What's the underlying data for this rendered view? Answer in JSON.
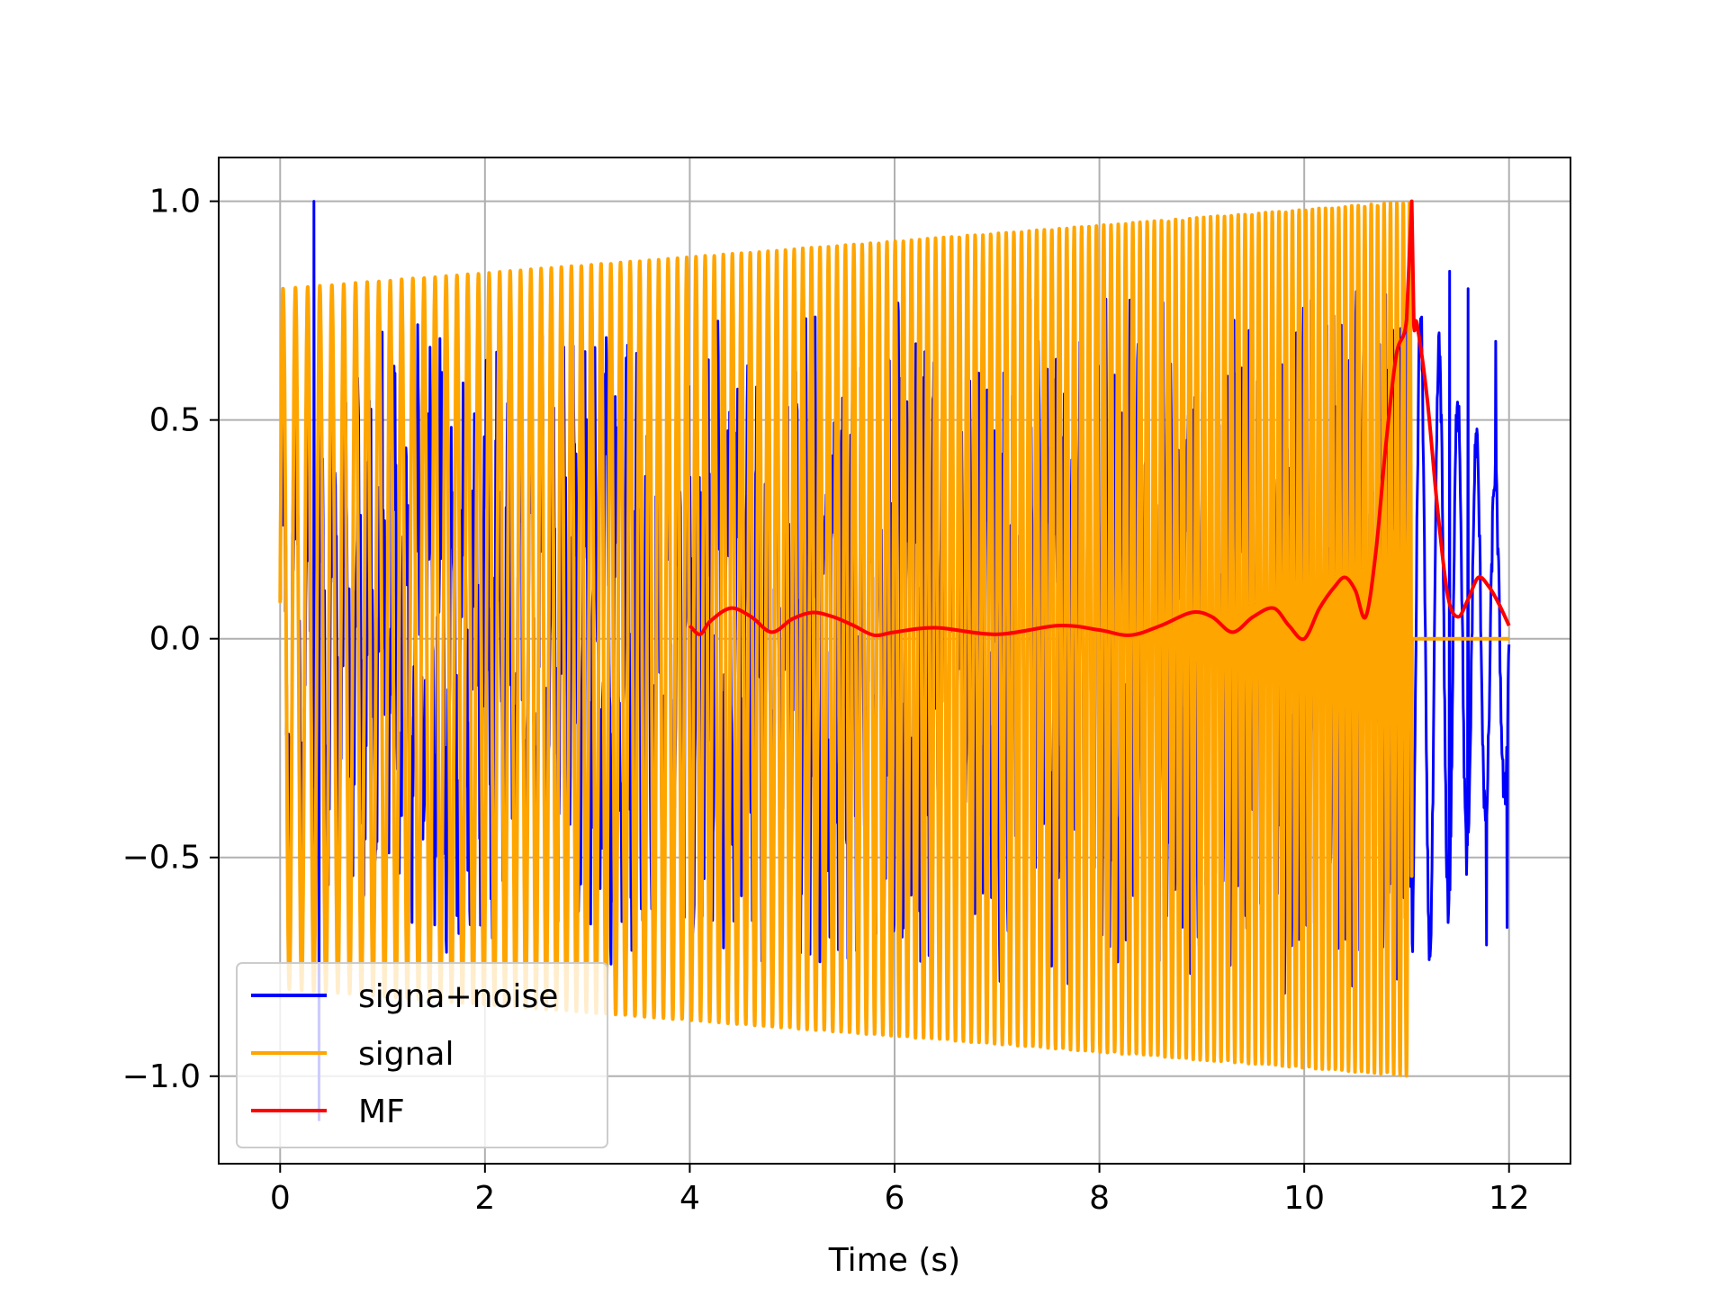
{
  "chart_data": {
    "type": "line",
    "xlabel": "Time (s)",
    "ylabel": "",
    "xlim": [
      -0.6,
      12.6
    ],
    "ylim": [
      -1.2,
      1.1
    ],
    "xticks": [
      0,
      2,
      4,
      6,
      8,
      10,
      12
    ],
    "xtick_labels": [
      "0",
      "2",
      "4",
      "6",
      "8",
      "10",
      "12"
    ],
    "yticks": [
      -1.0,
      -0.5,
      0.0,
      0.5,
      1.0
    ],
    "ytick_labels": [
      "−1.0",
      "−0.5",
      "0.0",
      "0.5",
      "1.0"
    ],
    "grid": true,
    "legend_position": "lower-left",
    "series": [
      {
        "name": "signa+noise",
        "color": "#0000ff",
        "description": "noisy received signal, peak-normalised; extends from 0 to 12 s",
        "x_range": [
          0,
          12
        ],
        "y_range": [
          -1.1,
          1.0
        ],
        "annotated_points": [
          {
            "x": 0.33,
            "y": 1.0
          },
          {
            "x": 0.38,
            "y": -1.1
          },
          {
            "x": 11.42,
            "y": 0.84
          },
          {
            "x": 11.6,
            "y": 0.8
          },
          {
            "x": 11.87,
            "y": 0.68
          },
          {
            "x": 11.78,
            "y": -0.7
          },
          {
            "x": 11.98,
            "y": -0.66
          }
        ]
      },
      {
        "name": "signal",
        "color": "#ffa500",
        "description": "linear chirp with linearly increasing amplitude, zero after ~11.05 s",
        "x_range": [
          0,
          12
        ],
        "amplitude_start": 0.8,
        "amplitude_end": 1.0,
        "signal_end": 11.05
      },
      {
        "name": "MF",
        "color": "#ff0000",
        "description": "matched filter output envelope, starts at 4 s, peak near 11.05 s",
        "x": [
          4.0,
          4.1,
          4.2,
          4.4,
          4.6,
          4.8,
          5.0,
          5.2,
          5.4,
          5.6,
          5.8,
          6.0,
          6.4,
          7.0,
          7.6,
          8.0,
          8.3,
          8.6,
          8.9,
          9.1,
          9.3,
          9.5,
          9.7,
          9.85,
          10.0,
          10.15,
          10.3,
          10.4,
          10.5,
          10.6,
          10.7,
          10.8,
          10.9,
          11.0,
          11.05,
          11.07,
          11.1,
          11.2,
          11.3,
          11.4,
          11.5,
          11.6,
          11.7,
          11.8,
          11.9,
          12.0
        ],
        "y": [
          0.03,
          0.01,
          0.04,
          0.07,
          0.05,
          0.015,
          0.045,
          0.06,
          0.05,
          0.03,
          0.008,
          0.015,
          0.025,
          0.01,
          0.03,
          0.02,
          0.008,
          0.03,
          0.06,
          0.05,
          0.015,
          0.05,
          0.07,
          0.03,
          0.0,
          0.07,
          0.12,
          0.14,
          0.11,
          0.05,
          0.2,
          0.45,
          0.65,
          0.73,
          1.0,
          0.72,
          0.72,
          0.55,
          0.3,
          0.1,
          0.05,
          0.09,
          0.14,
          0.12,
          0.08,
          0.03
        ]
      }
    ]
  }
}
